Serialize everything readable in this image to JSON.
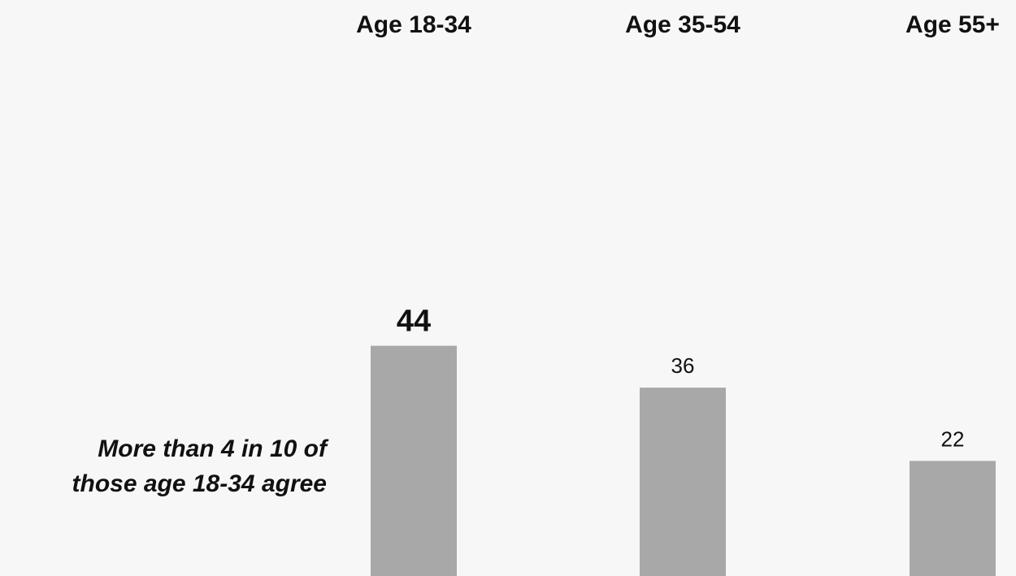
{
  "chart_data": {
    "type": "bar",
    "categories": [
      "Age 18-34",
      "Age 35-54",
      "Age 55+"
    ],
    "values": [
      44,
      36,
      22
    ],
    "highlight_index": 0,
    "title": "",
    "xlabel": "",
    "ylabel": "",
    "ylim": [
      0,
      100
    ],
    "grid": false,
    "bar_color": "#a8a8a8",
    "annotation": {
      "line1": "More than 4 in 10 of",
      "line2": "those age 18-34 agree"
    }
  },
  "colors": {
    "background": "#f7f7f7",
    "text": "#111111",
    "bar": "#a8a8a8"
  }
}
